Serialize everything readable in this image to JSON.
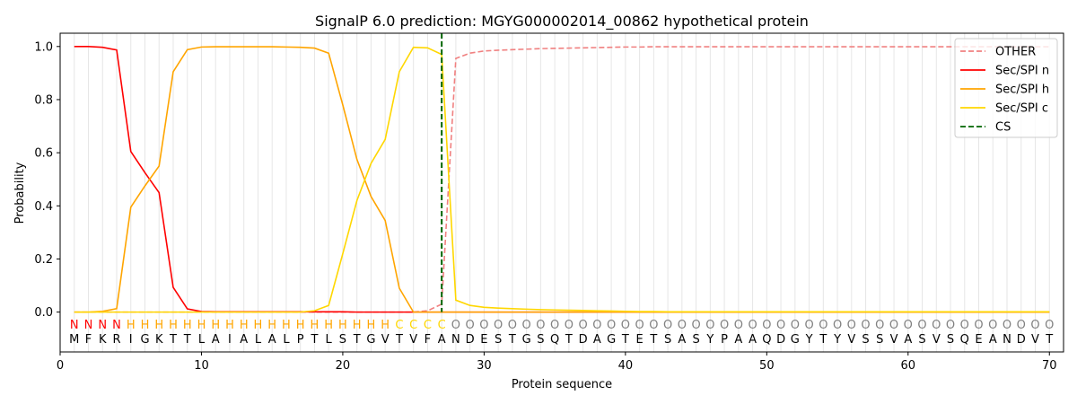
{
  "chart_data": {
    "type": "line",
    "title": "SignalP 6.0 prediction: MGYG000002014_00862 hypothetical protein",
    "xlabel": "Protein sequence",
    "ylabel": "Probability",
    "xlim": [
      0,
      71
    ],
    "ylim": [
      -0.15,
      1.05
    ],
    "xticks": [
      0,
      10,
      20,
      30,
      40,
      50,
      60,
      70
    ],
    "yticks": [
      0.0,
      0.2,
      0.4,
      0.6,
      0.8,
      1.0
    ],
    "ytick_labels": [
      "0.0",
      "0.2",
      "0.4",
      "0.6",
      "0.8",
      "1.0"
    ],
    "grid": "vertical lines at each residue",
    "legend_position": "top-right",
    "sequence": "MFKRIGKTTLAIALALPTLSTGVTVFANDESTGSQTDAGTETSASYPAAQDGYTYVSSVASVSQEANDVT",
    "region_labels": "NNNNHHHHHHHHHHHHHHHHHHHCCCCOOOOOOOOOOOOOOOOOOOOOOOOOOOOOOOOOOOOOOOOOOO",
    "region_colors": {
      "N": "#ff0000",
      "H": "#ffa500",
      "C": "#ffd700",
      "O": "#808080"
    },
    "cleavage_site": 27,
    "series": [
      {
        "name": "OTHER",
        "color": "#f08080",
        "dash": "dashed",
        "values": [
          0.0,
          0.0,
          0.0,
          0.0,
          0.0,
          0.0,
          0.0,
          0.0,
          0.0,
          0.0,
          0.0,
          0.0,
          0.0,
          0.0,
          0.0,
          0.0,
          0.0,
          0.0,
          0.0,
          0.0,
          0.0,
          0.0,
          0.0,
          0.0,
          0.0,
          0.005,
          0.03,
          0.955,
          0.975,
          0.983,
          0.986,
          0.988,
          0.99,
          0.992,
          0.993,
          0.994,
          0.995,
          0.996,
          0.997,
          0.998,
          0.998,
          0.999,
          0.999,
          0.999,
          0.999,
          0.999,
          0.999,
          0.999,
          0.999,
          0.999,
          0.999,
          0.999,
          0.999,
          0.999,
          0.999,
          0.999,
          0.999,
          0.999,
          0.999,
          0.999,
          0.999,
          0.999,
          0.999,
          0.999,
          0.999,
          0.999,
          0.999,
          0.999,
          0.999,
          0.999
        ]
      },
      {
        "name": "Sec/SPI n",
        "color": "#ff0000",
        "dash": "solid",
        "values": [
          1.0,
          1.0,
          0.997,
          0.987,
          0.605,
          0.525,
          0.45,
          0.093,
          0.012,
          0.002,
          0.001,
          0.001,
          0.001,
          0.001,
          0.001,
          0.001,
          0.001,
          0.001,
          0.001,
          0.001,
          0.0,
          0.0,
          0.0,
          0.0,
          0.0,
          0.0,
          0.0,
          0.0,
          0.0,
          0.0,
          0.0,
          0.0,
          0.0,
          0.0,
          0.0,
          0.0,
          0.0,
          0.0,
          0.0,
          0.0,
          0.0,
          0.0,
          0.0,
          0.0,
          0.0,
          0.0,
          0.0,
          0.0,
          0.0,
          0.0,
          0.0,
          0.0,
          0.0,
          0.0,
          0.0,
          0.0,
          0.0,
          0.0,
          0.0,
          0.0,
          0.0,
          0.0,
          0.0,
          0.0,
          0.0,
          0.0,
          0.0,
          0.0,
          0.0,
          0.0
        ]
      },
      {
        "name": "Sec/SPI h",
        "color": "#ffa500",
        "dash": "solid",
        "values": [
          0.0,
          0.0,
          0.003,
          0.013,
          0.395,
          0.475,
          0.55,
          0.905,
          0.988,
          0.998,
          0.999,
          0.999,
          0.999,
          0.999,
          0.999,
          0.998,
          0.997,
          0.994,
          0.975,
          0.78,
          0.575,
          0.435,
          0.345,
          0.09,
          0.0,
          0.0,
          0.0,
          0.0,
          0.0,
          0.0,
          0.0,
          0.0,
          0.0,
          0.0,
          0.0,
          0.0,
          0.0,
          0.0,
          0.0,
          0.0,
          0.0,
          0.0,
          0.0,
          0.0,
          0.0,
          0.0,
          0.0,
          0.0,
          0.0,
          0.0,
          0.0,
          0.0,
          0.0,
          0.0,
          0.0,
          0.0,
          0.0,
          0.0,
          0.0,
          0.0,
          0.0,
          0.0,
          0.0,
          0.0,
          0.0,
          0.0,
          0.0,
          0.0,
          0.0,
          0.0
        ]
      },
      {
        "name": "Sec/SPI c",
        "color": "#ffd700",
        "dash": "solid",
        "values": [
          0.0,
          0.0,
          0.0,
          0.0,
          0.0,
          0.0,
          0.0,
          0.0,
          0.0,
          0.0,
          0.0,
          0.0,
          0.0,
          0.0,
          0.0,
          0.0,
          0.0,
          0.005,
          0.025,
          0.22,
          0.42,
          0.56,
          0.65,
          0.905,
          0.997,
          0.995,
          0.97,
          0.045,
          0.025,
          0.018,
          0.015,
          0.013,
          0.011,
          0.009,
          0.008,
          0.007,
          0.006,
          0.005,
          0.004,
          0.003,
          0.002,
          0.002,
          0.001,
          0.001,
          0.001,
          0.001,
          0.001,
          0.001,
          0.001,
          0.001,
          0.001,
          0.001,
          0.001,
          0.001,
          0.001,
          0.001,
          0.001,
          0.001,
          0.001,
          0.001,
          0.001,
          0.001,
          0.001,
          0.001,
          0.001,
          0.001,
          0.001,
          0.001,
          0.001,
          0.001
        ]
      },
      {
        "name": "CS",
        "color": "#006400",
        "dash": "dashed",
        "vertical_at": 27
      }
    ]
  }
}
